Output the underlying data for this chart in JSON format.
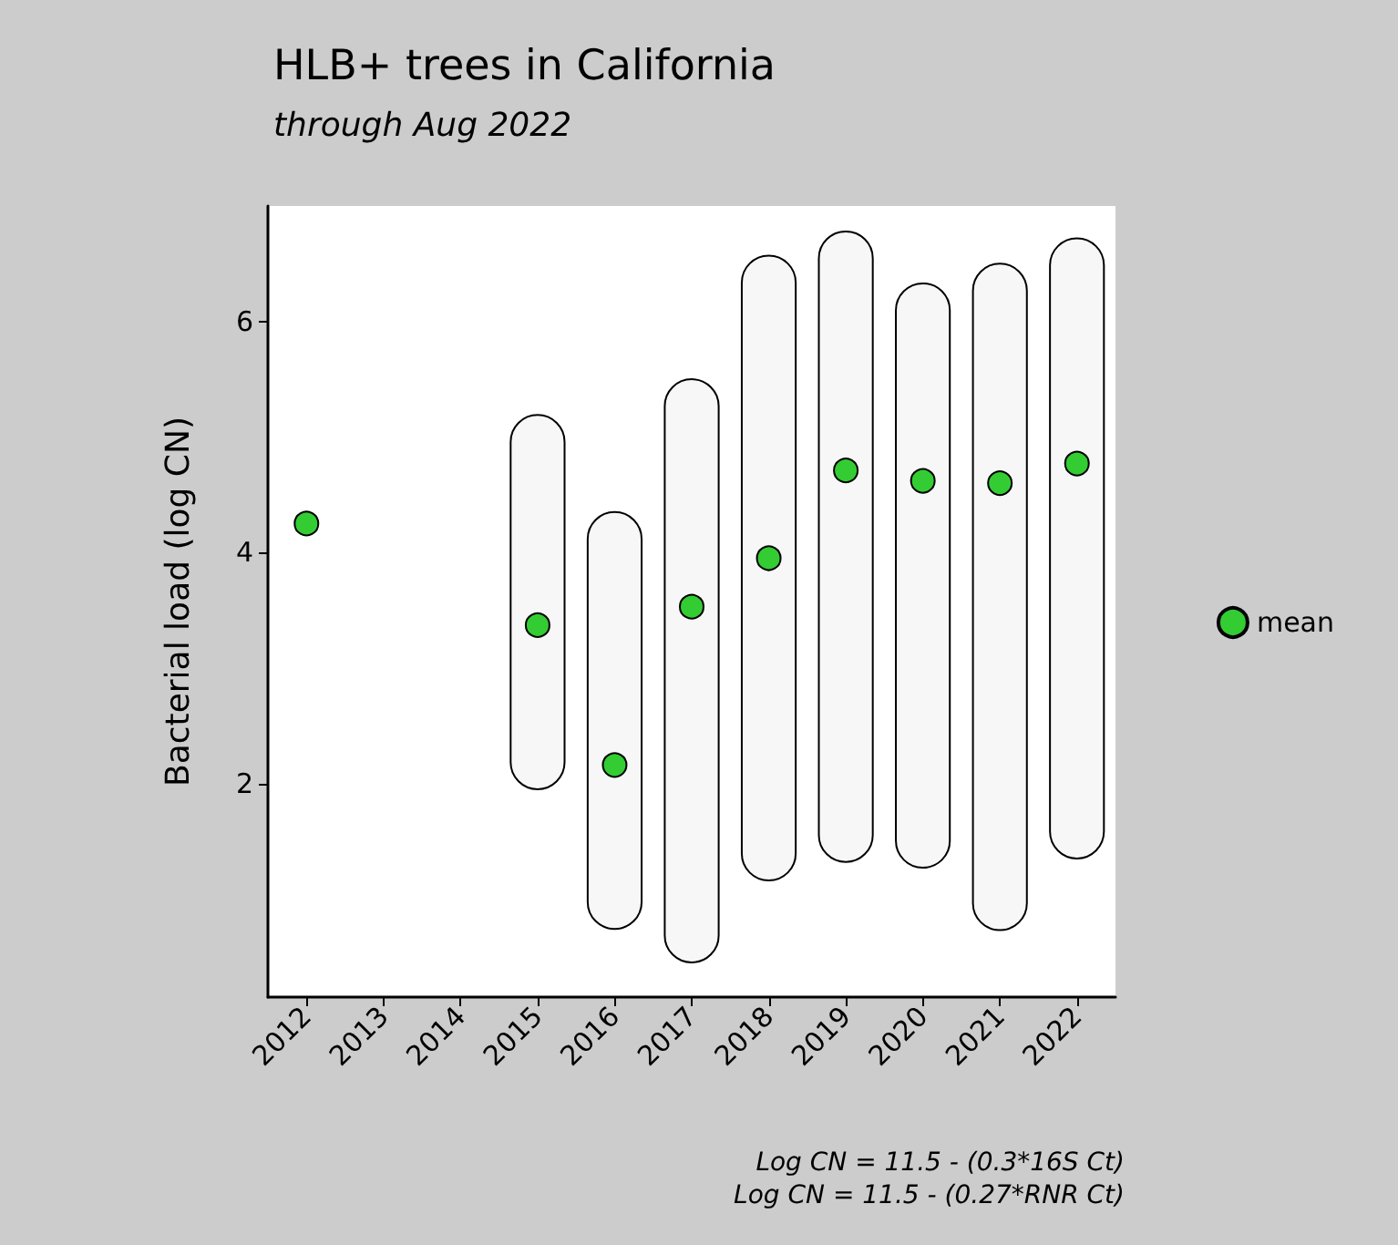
{
  "chart_data": {
    "type": "bar",
    "title": "HLB+ trees in California",
    "subtitle": "through Aug 2022",
    "ylabel": "Bacterial load (log CN)",
    "categories": [
      "2012",
      "2013",
      "2014",
      "2015",
      "2016",
      "2017",
      "2018",
      "2019",
      "2020",
      "2021",
      "2022"
    ],
    "series": [
      {
        "color": "#000000",
        "base": [
          null,
          null,
          null,
          1.95,
          0.74,
          0.45,
          1.16,
          1.32,
          1.27,
          0.73,
          1.35
        ],
        "values": [
          null,
          null,
          null,
          3.24,
          3.61,
          5.05,
          5.41,
          5.46,
          5.06,
          5.77,
          5.37
        ]
      },
      {
        "type": "scatter",
        "name": "mean",
        "color": "#33cc33",
        "values": [
          4.25,
          null,
          null,
          3.37,
          2.16,
          3.53,
          3.95,
          4.71,
          4.62,
          4.6,
          4.77
        ]
      }
    ],
    "ylim": [
      0.15,
      7.0
    ],
    "yticks": [
      2,
      4,
      6
    ],
    "grid": false,
    "legend": "right",
    "marker": "circle",
    "annotations": [
      "Log CN = 11.5 - (0.3*16S Ct)",
      "Log CN = 11.5 - (0.27*RNR Ct)"
    ]
  }
}
